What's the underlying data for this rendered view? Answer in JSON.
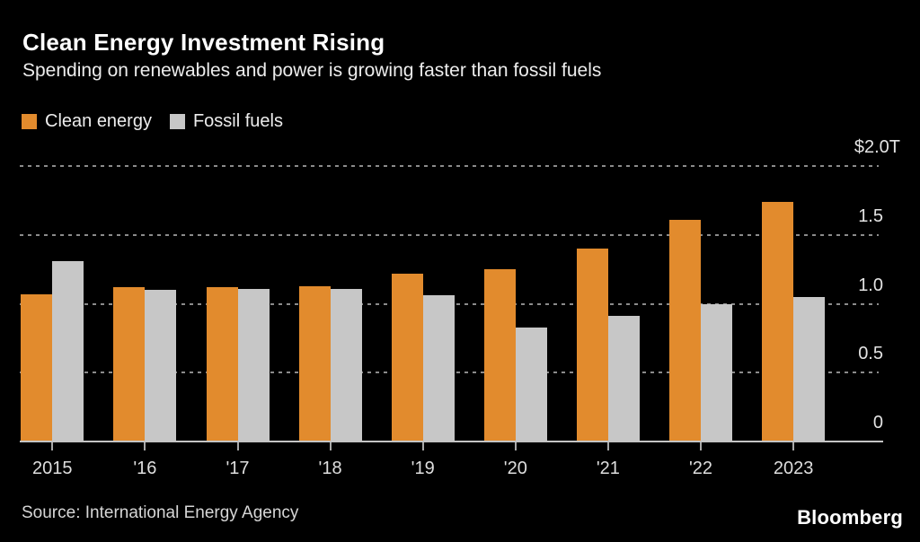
{
  "header": {
    "title": "Clean Energy Investment Rising",
    "subtitle": "Spending on renewables and power is growing faster than fossil fuels"
  },
  "legend": {
    "items": [
      {
        "label": "Clean energy",
        "color": "#E28B2D"
      },
      {
        "label": "Fossil fuels",
        "color": "#C7C7C7"
      }
    ]
  },
  "footer": {
    "source": "Source: International Energy Agency",
    "brand": "Bloomberg"
  },
  "colors": {
    "background": "#000000",
    "title_text": "#FFFFFF",
    "subtitle_text": "#EDEDED",
    "clean_energy": "#E28B2D",
    "fossil_fuels": "#C7C7C7",
    "gridline": "#8B8B8B",
    "axis_line": "#C4C4C4",
    "tick_mark": "#A9A9A9",
    "x_label": "#DEDEDE",
    "y_label": "#E3E3E3"
  },
  "chart_data": {
    "type": "bar",
    "title": "Clean Energy Investment Rising",
    "subtitle": "Spending on renewables and power is growing faster than fossil fuels",
    "categories": [
      "2015",
      "'16",
      "'17",
      "'18",
      "'19",
      "'20",
      "'21",
      "'22",
      "2023"
    ],
    "series": [
      {
        "name": "Clean energy",
        "color": "#E28B2D",
        "values": [
          1.07,
          1.12,
          1.12,
          1.13,
          1.22,
          1.25,
          1.4,
          1.61,
          1.74
        ]
      },
      {
        "name": "Fossil fuels",
        "color": "#C7C7C7",
        "values": [
          1.31,
          1.1,
          1.11,
          1.11,
          1.06,
          0.83,
          0.91,
          1.0,
          1.05
        ]
      }
    ],
    "xlabel": "",
    "ylabel": "",
    "ylim": [
      0,
      2.0
    ],
    "yticks": [
      {
        "value": 2.0,
        "label": "$2.0T"
      },
      {
        "value": 1.5,
        "label": "1.5"
      },
      {
        "value": 1.0,
        "label": "1.0"
      },
      {
        "value": 0.5,
        "label": "0.5"
      },
      {
        "value": 0,
        "label": "0"
      }
    ],
    "grid": "horizontal-dotted",
    "legend_position": "top-left",
    "source": "Source: International Energy Agency",
    "brand": "Bloomberg"
  }
}
